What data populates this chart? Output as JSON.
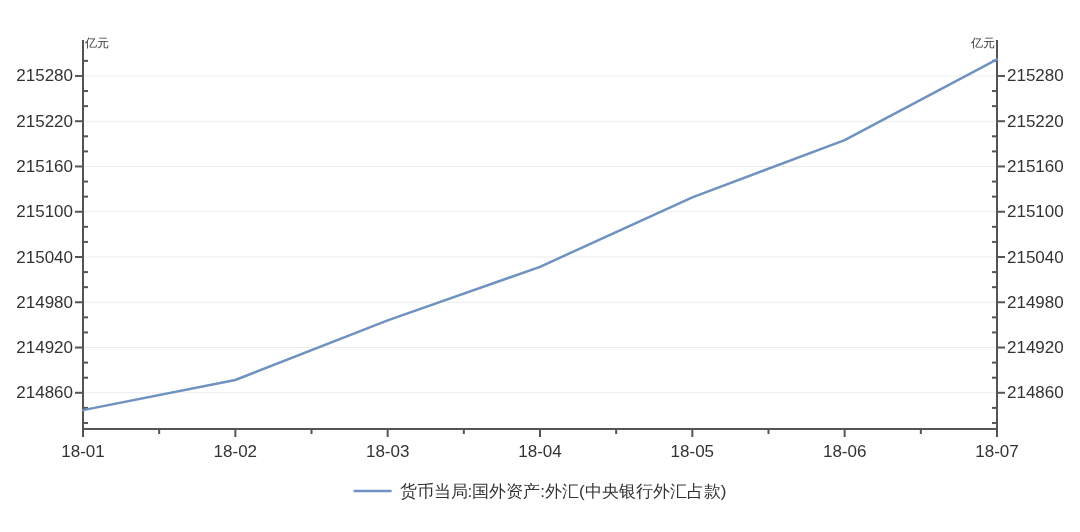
{
  "chart_data": {
    "type": "line",
    "ylabel": "亿元",
    "y2label": "亿元",
    "categories": [
      "18-01",
      "18-02",
      "18-03",
      "18-04",
      "18-05",
      "18-06",
      "18-07"
    ],
    "series": [
      {
        "name": "货币当局:国外资产:外汇(中央银行外汇占款)",
        "color": "#6f92c1",
        "values": [
          214837,
          214877,
          214956,
          215027,
          215119,
          215195,
          215302
        ]
      }
    ],
    "ylim": [
      214812,
      215325
    ],
    "yticks": [
      {
        "value": 214820,
        "label": null
      },
      {
        "value": 214840,
        "label": null
      },
      214860,
      {
        "value": 214880,
        "label": null
      },
      {
        "value": 214900,
        "label": null
      },
      214920,
      {
        "value": 214940,
        "label": null
      },
      {
        "value": 214960,
        "label": null
      },
      214980,
      {
        "value": 215000,
        "label": null
      },
      {
        "value": 215020,
        "label": null
      },
      215040,
      {
        "value": 215060,
        "label": null
      },
      {
        "value": 215080,
        "label": null
      },
      215100,
      {
        "value": 215120,
        "label": null
      },
      {
        "value": 215140,
        "label": null
      },
      215160,
      {
        "value": 215180,
        "label": null
      },
      {
        "value": 215200,
        "label": null
      },
      215220,
      {
        "value": 215240,
        "label": null
      },
      {
        "value": 215260,
        "label": null
      },
      215280,
      {
        "value": 215300,
        "label": null
      }
    ],
    "y2lim": [
      214812,
      215325
    ],
    "y2ticks": [
      {
        "value": 214820,
        "label": null
      },
      {
        "value": 214840,
        "label": null
      },
      214860,
      {
        "value": 214880,
        "label": null
      },
      {
        "value": 214900,
        "label": null
      },
      214920,
      {
        "value": 214940,
        "label": null
      },
      {
        "value": 214960,
        "label": null
      },
      214980,
      {
        "value": 215000,
        "label": null
      },
      {
        "value": 215020,
        "label": null
      },
      215040,
      {
        "value": 215060,
        "label": null
      },
      {
        "value": 215080,
        "label": null
      },
      215100,
      {
        "value": 215120,
        "label": null
      },
      {
        "value": 215140,
        "label": null
      },
      215160,
      {
        "value": 215180,
        "label": null
      },
      {
        "value": 215200,
        "label": null
      },
      215220,
      {
        "value": 215240,
        "label": null
      },
      {
        "value": 215260,
        "label": null
      },
      215280,
      {
        "value": 215300,
        "label": null
      }
    ],
    "grid": "y",
    "legend": "bottom",
    "marker": "none",
    "line_style": "solid"
  }
}
